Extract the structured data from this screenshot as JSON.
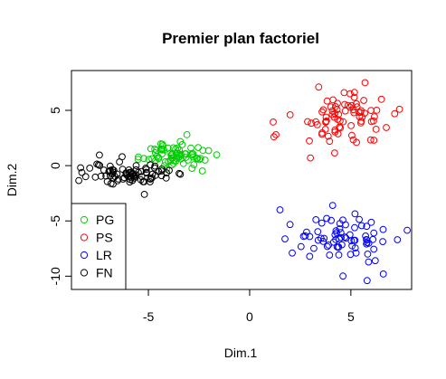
{
  "chart_data": {
    "type": "scatter",
    "title": "Premier plan factoriel",
    "xlabel": "Dim.1",
    "ylabel": "Dim.2",
    "xlim": [
      -8.8,
      8.0
    ],
    "ylim": [
      -11.2,
      8.6
    ],
    "xticks": [
      -5,
      0,
      5
    ],
    "yticks": [
      -10,
      -5,
      0,
      5
    ],
    "grid": false,
    "legend_position": "bottom-left",
    "series": [
      {
        "name": "PG",
        "color": "#00cd00",
        "center": [
          -3.6,
          0.9
        ],
        "spread": [
          0.85,
          0.55
        ],
        "n": 70,
        "points": [
          [
            -2.2,
            0.5
          ],
          [
            -3.1,
            2.8
          ],
          [
            -4.6,
            1.4
          ],
          [
            -4.1,
            -0.3
          ],
          [
            -2.9,
            1.6
          ]
        ]
      },
      {
        "name": "PS",
        "color": "#ff0000",
        "center": [
          4.6,
          4.4
        ],
        "spread": [
          1.25,
          1.15
        ],
        "n": 75,
        "points": [
          [
            1.2,
            2.6
          ],
          [
            1.3,
            2.8
          ],
          [
            5.7,
            7.5
          ],
          [
            7.4,
            5.1
          ],
          [
            3.0,
            0.7
          ],
          [
            2.0,
            4.6
          ]
        ]
      },
      {
        "name": "LR",
        "color": "#0000ff",
        "center": [
          4.8,
          -6.6
        ],
        "spread": [
          1.25,
          1.05
        ],
        "n": 70,
        "points": [
          [
            1.5,
            -4.0
          ],
          [
            7.3,
            -6.7
          ],
          [
            5.8,
            -10.4
          ],
          [
            6.6,
            -9.8
          ],
          [
            4.1,
            -3.6
          ],
          [
            2.1,
            -7.9
          ]
        ]
      },
      {
        "name": "FN",
        "color": "#000000",
        "center": [
          -5.8,
          -0.8
        ],
        "spread": [
          1.05,
          0.5
        ],
        "n": 80,
        "points": [
          [
            -8.1,
            -1.0
          ],
          [
            -5.2,
            -2.6
          ],
          [
            -6.3,
            0.8
          ],
          [
            -7.2,
            -0.4
          ],
          [
            -4.7,
            -0.2
          ]
        ]
      }
    ]
  }
}
